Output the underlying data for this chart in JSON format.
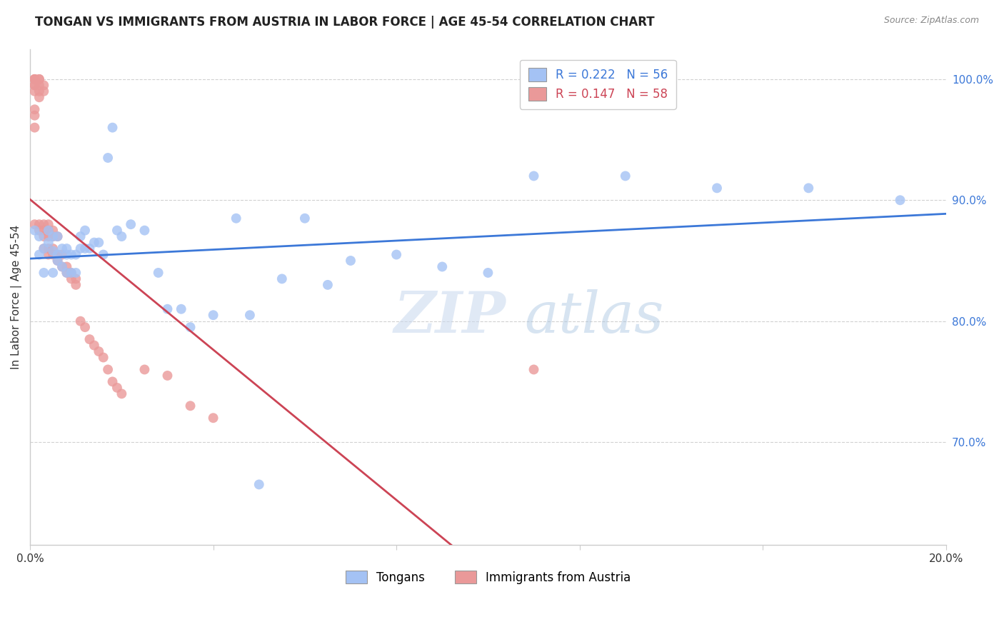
{
  "title": "TONGAN VS IMMIGRANTS FROM AUSTRIA IN LABOR FORCE | AGE 45-54 CORRELATION CHART",
  "source": "Source: ZipAtlas.com",
  "ylabel": "In Labor Force | Age 45-54",
  "xlim": [
    0.0,
    0.2
  ],
  "ylim": [
    0.615,
    1.025
  ],
  "yticks": [
    0.7,
    0.8,
    0.9,
    1.0
  ],
  "ytick_labels": [
    "70.0%",
    "80.0%",
    "90.0%",
    "100.0%"
  ],
  "background_color": "#ffffff",
  "blue_color": "#a4c2f4",
  "pink_color": "#ea9999",
  "blue_line_color": "#3c78d8",
  "pink_line_color": "#cc4455",
  "blue_label": "Tongans",
  "pink_label": "Immigrants from Austria",
  "blue_R": 0.222,
  "blue_N": 56,
  "pink_R": 0.147,
  "pink_N": 58,
  "grid_color": "#cccccc",
  "tongans_x": [
    0.001,
    0.002,
    0.002,
    0.003,
    0.003,
    0.004,
    0.004,
    0.005,
    0.005,
    0.005,
    0.006,
    0.006,
    0.006,
    0.007,
    0.007,
    0.008,
    0.008,
    0.008,
    0.009,
    0.009,
    0.01,
    0.01,
    0.011,
    0.011,
    0.012,
    0.012,
    0.013,
    0.014,
    0.015,
    0.016,
    0.017,
    0.018,
    0.019,
    0.02,
    0.022,
    0.025,
    0.028,
    0.03,
    0.033,
    0.035,
    0.04,
    0.045,
    0.048,
    0.05,
    0.055,
    0.06,
    0.065,
    0.07,
    0.08,
    0.09,
    0.1,
    0.11,
    0.13,
    0.15,
    0.17,
    0.19
  ],
  "tongans_y": [
    0.875,
    0.87,
    0.855,
    0.86,
    0.84,
    0.865,
    0.875,
    0.87,
    0.858,
    0.84,
    0.855,
    0.87,
    0.85,
    0.86,
    0.845,
    0.855,
    0.84,
    0.86,
    0.84,
    0.855,
    0.855,
    0.84,
    0.87,
    0.86,
    0.86,
    0.875,
    0.86,
    0.865,
    0.865,
    0.855,
    0.935,
    0.96,
    0.875,
    0.87,
    0.88,
    0.875,
    0.84,
    0.81,
    0.81,
    0.795,
    0.805,
    0.885,
    0.805,
    0.665,
    0.835,
    0.885,
    0.83,
    0.85,
    0.855,
    0.845,
    0.84,
    0.92,
    0.92,
    0.91,
    0.91,
    0.9
  ],
  "austria_x": [
    0.001,
    0.001,
    0.001,
    0.001,
    0.001,
    0.001,
    0.001,
    0.001,
    0.001,
    0.001,
    0.002,
    0.002,
    0.002,
    0.002,
    0.002,
    0.002,
    0.002,
    0.003,
    0.003,
    0.003,
    0.003,
    0.003,
    0.003,
    0.004,
    0.004,
    0.004,
    0.004,
    0.004,
    0.005,
    0.005,
    0.005,
    0.005,
    0.006,
    0.006,
    0.006,
    0.007,
    0.007,
    0.008,
    0.008,
    0.009,
    0.009,
    0.01,
    0.01,
    0.011,
    0.012,
    0.013,
    0.014,
    0.015,
    0.016,
    0.017,
    0.018,
    0.019,
    0.02,
    0.025,
    0.03,
    0.035,
    0.04,
    0.11
  ],
  "austria_y": [
    1.0,
    1.0,
    1.0,
    0.995,
    0.995,
    0.99,
    0.975,
    0.97,
    0.96,
    0.88,
    1.0,
    1.0,
    0.995,
    0.99,
    0.985,
    0.88,
    0.875,
    0.995,
    0.99,
    0.88,
    0.875,
    0.87,
    0.86,
    0.88,
    0.875,
    0.87,
    0.86,
    0.855,
    0.875,
    0.87,
    0.86,
    0.855,
    0.87,
    0.855,
    0.85,
    0.855,
    0.845,
    0.845,
    0.84,
    0.84,
    0.835,
    0.835,
    0.83,
    0.8,
    0.795,
    0.785,
    0.78,
    0.775,
    0.77,
    0.76,
    0.75,
    0.745,
    0.74,
    0.76,
    0.755,
    0.73,
    0.72,
    0.76
  ]
}
